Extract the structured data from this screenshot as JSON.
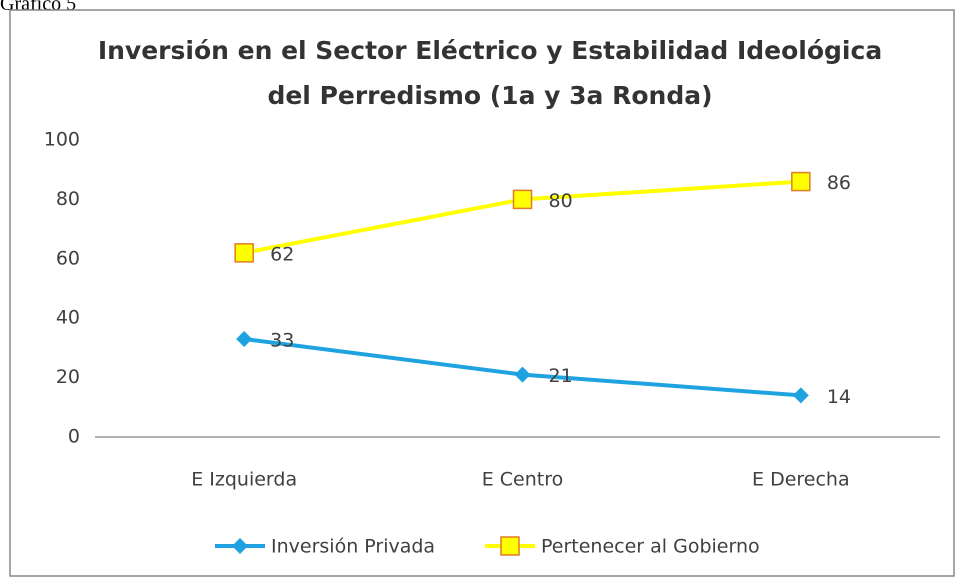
{
  "caption": "Gráfico 5",
  "chart_data": {
    "type": "line",
    "title": [
      "Inversión en el Sector Eléctrico y Estabilidad Ideológica",
      "del Perredismo (1a y 3a Ronda)"
    ],
    "categories": [
      "E Izquierda",
      "E Centro",
      "E Derecha"
    ],
    "series": [
      {
        "name": "Inversión Privada",
        "color": "#1ea3e0",
        "marker": "diamond",
        "values": [
          33,
          21,
          14
        ]
      },
      {
        "name": "Pertenecer al Gobierno",
        "color": "#ffff00",
        "marker": "square",
        "values": [
          62,
          80,
          86
        ]
      }
    ],
    "ylim": [
      0,
      100
    ],
    "yticks": [
      0,
      20,
      40,
      60,
      80,
      100
    ],
    "grid": false,
    "legend": "bottom"
  }
}
